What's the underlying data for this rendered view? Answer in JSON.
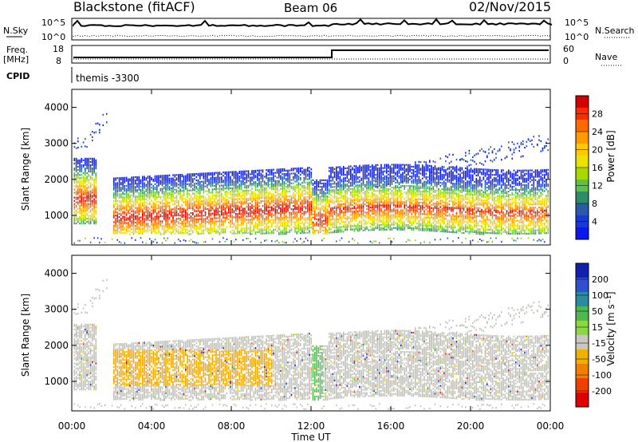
{
  "header": {
    "station": "Blackstone (fitACF)",
    "beam": "Beam 06",
    "date": "02/Nov/2015"
  },
  "top_panel": {
    "noise_sky_label": "N.Sky",
    "noise_search_label": "N.Search",
    "noise_ticks": [
      "10^5",
      "10^0"
    ],
    "freq_label": "Freq.",
    "freq_unit": "[MHz]",
    "freq_ticks": [
      "18",
      "8"
    ],
    "nave_label": "Nave",
    "nave_ticks": [
      "60",
      "0"
    ],
    "cpid_label": "CPID",
    "cpid_value": "themis -3300"
  },
  "chart_data": [
    {
      "type": "heatmap",
      "ylabel": "Slant Range [km]",
      "xlabel": "",
      "yticks": [
        "1000",
        "2000",
        "3000",
        "4000"
      ],
      "ylim": [
        180,
        4500
      ],
      "colorbar": {
        "label": "Power [dB]",
        "ticks": [
          "28",
          "24",
          "20",
          "16",
          "12",
          "8",
          "4"
        ],
        "colors": [
          "#d40000",
          "#ff2a00",
          "#ff6a00",
          "#ff9a00",
          "#ffc800",
          "#e8e400",
          "#a8d800",
          "#5cc24a",
          "#2e8c6a",
          "#2a5aa8",
          "#1838d8",
          "#0a18f0"
        ]
      }
    },
    {
      "type": "heatmap",
      "ylabel": "Slant Range [km]",
      "xlabel": "Time UT",
      "xticks": [
        "00:00",
        "04:00",
        "08:00",
        "12:00",
        "16:00",
        "20:00",
        "00:00"
      ],
      "yticks": [
        "1000",
        "2000",
        "3000",
        "4000"
      ],
      "ylim": [
        180,
        4500
      ],
      "colorbar": {
        "label": "Velocity [m s⁻¹]",
        "ticks": [
          "200",
          "100",
          "50",
          "15",
          "-15",
          "-50",
          "-100",
          "-200"
        ],
        "colors": [
          "#1020b0",
          "#3050d0",
          "#2a8ca0",
          "#50b850",
          "#8cd840",
          "#c8c8c0",
          "#f0b000",
          "#f08000",
          "#f04000",
          "#e00000"
        ]
      }
    }
  ],
  "colors": {
    "ground_scatter": "#c0c0b8",
    "negative_velocity": "#f5a800",
    "positive_velocity": "#50c050"
  }
}
